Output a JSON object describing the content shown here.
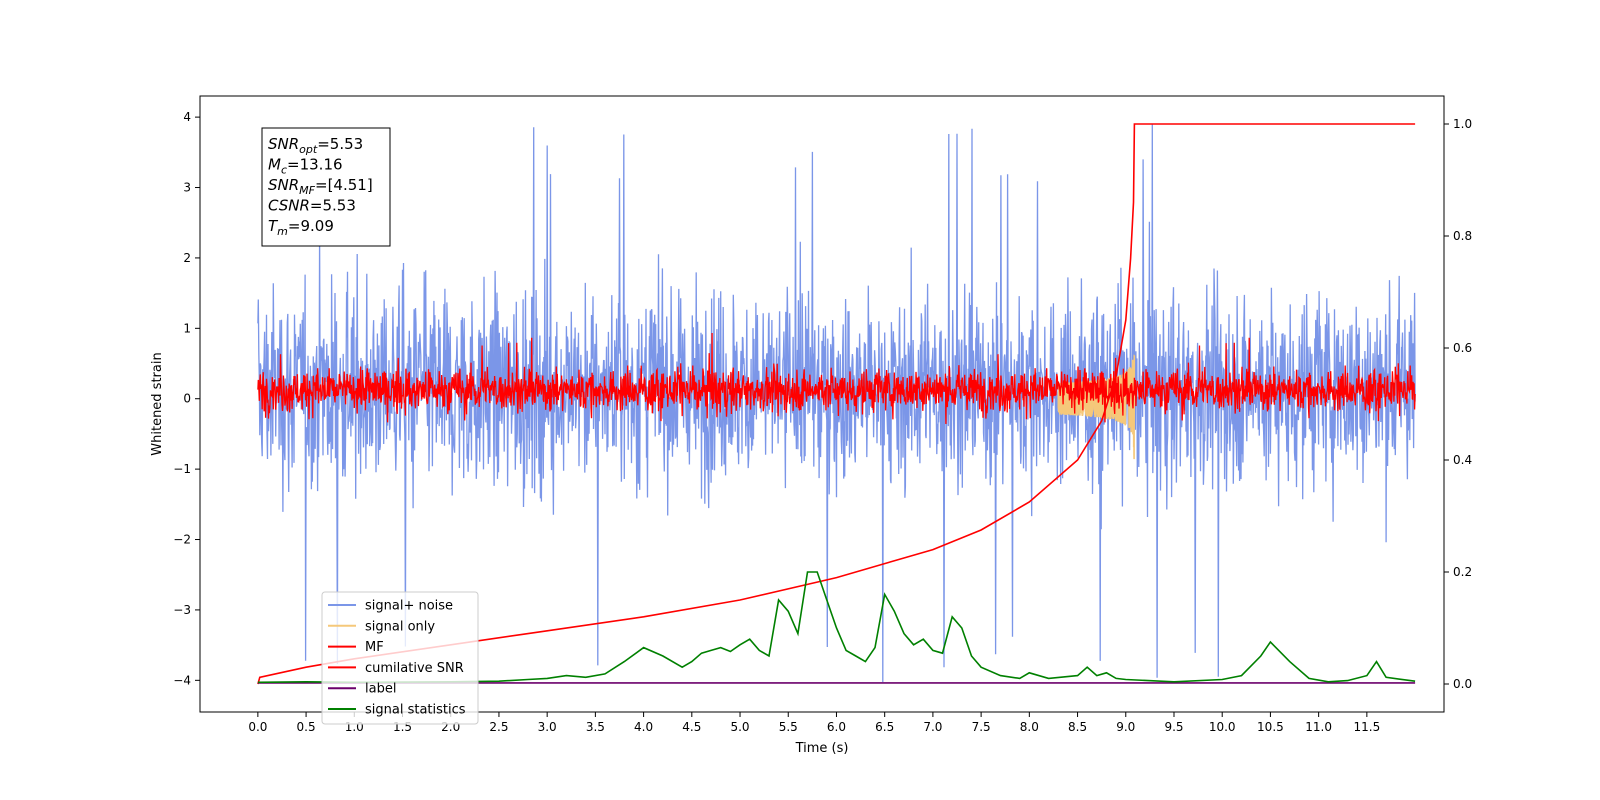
{
  "chart_data": {
    "type": "line",
    "xlabel": "Time (s)",
    "ylabel": "Whitened strain",
    "xlim": [
      -0.6,
      12.3
    ],
    "ylim": [
      -4.45,
      4.3
    ],
    "y2lim": [
      -0.05,
      1.05
    ],
    "x_ticks": [
      0.0,
      0.5,
      1.0,
      1.5,
      2.0,
      2.5,
      3.0,
      3.5,
      4.0,
      4.5,
      5.0,
      5.5,
      6.0,
      6.5,
      7.0,
      7.5,
      8.0,
      8.5,
      9.0,
      9.5,
      10.0,
      10.5,
      11.0,
      11.5
    ],
    "x_tick_labels": [
      "0.0",
      "0.5",
      "1.0",
      "1.5",
      "2.0",
      "2.5",
      "3.0",
      "3.5",
      "4.0",
      "4.5",
      "5.0",
      "5.5",
      "6.0",
      "6.5",
      "7.0",
      "7.5",
      "8.0",
      "8.5",
      "9.0",
      "9.5",
      "10.0",
      "10.5",
      "11.0",
      "11.5"
    ],
    "y_ticks": [
      -4,
      -3,
      -2,
      -1,
      0,
      1,
      2,
      3,
      4
    ],
    "y_tick_labels": [
      "−4",
      "−3",
      "−2",
      "−1",
      "0",
      "1",
      "2",
      "3",
      "4"
    ],
    "y2_ticks": [
      0.0,
      0.2,
      0.4,
      0.6,
      0.8,
      1.0
    ],
    "y2_tick_labels": [
      "0.0",
      "0.2",
      "0.4",
      "0.6",
      "0.8",
      "1.0"
    ],
    "legend_position": "lower-left",
    "annotation_lines": [
      {
        "sym": "SNR",
        "sub": "opt",
        "value": "=5.53"
      },
      {
        "sym": "M",
        "sub": "c",
        "value": "=13.16"
      },
      {
        "sym": "SNR",
        "sub": "MF",
        "value": "=[4.51]"
      },
      {
        "sym": "CSNR",
        "sub": "",
        "value": "=5.53"
      },
      {
        "sym": "T",
        "sub": "m",
        "value": "=9.09"
      }
    ],
    "series": [
      {
        "name": "signal+ noise",
        "color": "#7b96e8",
        "axis": "left",
        "kind": "noise",
        "x_range": [
          0.0,
          12.0
        ],
        "envelope_typical": [
          -2.0,
          2.3
        ],
        "extremes": [
          -4.1,
          3.93
        ]
      },
      {
        "name": "signal only",
        "color": "#f5c87a",
        "axis": "left",
        "kind": "chirp",
        "x_range": [
          8.3,
          9.09
        ],
        "peak": 1.0
      },
      {
        "name": "MF",
        "color": "#ff0000",
        "axis": "left",
        "kind": "noise",
        "x_range": [
          0.0,
          12.0
        ],
        "envelope_typical": [
          -0.35,
          0.6
        ],
        "extremes": [
          -0.4,
          0.96
        ]
      },
      {
        "name": "cumilative SNR",
        "color": "#ff0000",
        "axis": "right",
        "points": [
          [
            0.0,
            0.0
          ],
          [
            0.02,
            0.012
          ],
          [
            0.5,
            0.03
          ],
          [
            1.0,
            0.045
          ],
          [
            2.0,
            0.07
          ],
          [
            3.0,
            0.095
          ],
          [
            4.0,
            0.12
          ],
          [
            5.0,
            0.15
          ],
          [
            6.0,
            0.19
          ],
          [
            7.0,
            0.24
          ],
          [
            7.5,
            0.275
          ],
          [
            8.0,
            0.325
          ],
          [
            8.5,
            0.4
          ],
          [
            8.75,
            0.47
          ],
          [
            8.9,
            0.55
          ],
          [
            9.0,
            0.65
          ],
          [
            9.05,
            0.76
          ],
          [
            9.08,
            0.86
          ],
          [
            9.09,
            1.0
          ],
          [
            12.0,
            1.0
          ]
        ]
      },
      {
        "name": "label",
        "color": "#6b006b",
        "axis": "right",
        "points": [
          [
            0.0,
            0.002
          ],
          [
            12.0,
            0.002
          ]
        ]
      },
      {
        "name": "signal statistics",
        "color": "#008000",
        "axis": "right",
        "points": [
          [
            0.0,
            0.003
          ],
          [
            0.5,
            0.004
          ],
          [
            1.0,
            0.003
          ],
          [
            2.0,
            0.004
          ],
          [
            2.5,
            0.005
          ],
          [
            2.8,
            0.008
          ],
          [
            3.0,
            0.01
          ],
          [
            3.2,
            0.015
          ],
          [
            3.4,
            0.012
          ],
          [
            3.6,
            0.018
          ],
          [
            3.8,
            0.04
          ],
          [
            4.0,
            0.065
          ],
          [
            4.2,
            0.05
          ],
          [
            4.4,
            0.03
          ],
          [
            4.5,
            0.04
          ],
          [
            4.6,
            0.055
          ],
          [
            4.7,
            0.06
          ],
          [
            4.8,
            0.065
          ],
          [
            4.9,
            0.058
          ],
          [
            5.0,
            0.07
          ],
          [
            5.1,
            0.08
          ],
          [
            5.2,
            0.06
          ],
          [
            5.3,
            0.05
          ],
          [
            5.4,
            0.15
          ],
          [
            5.5,
            0.13
          ],
          [
            5.6,
            0.09
          ],
          [
            5.7,
            0.2
          ],
          [
            5.8,
            0.2
          ],
          [
            5.9,
            0.15
          ],
          [
            6.0,
            0.1
          ],
          [
            6.1,
            0.06
          ],
          [
            6.2,
            0.05
          ],
          [
            6.3,
            0.04
          ],
          [
            6.4,
            0.065
          ],
          [
            6.5,
            0.16
          ],
          [
            6.6,
            0.13
          ],
          [
            6.7,
            0.09
          ],
          [
            6.8,
            0.07
          ],
          [
            6.9,
            0.08
          ],
          [
            7.0,
            0.06
          ],
          [
            7.1,
            0.055
          ],
          [
            7.2,
            0.12
          ],
          [
            7.3,
            0.1
          ],
          [
            7.4,
            0.05
          ],
          [
            7.5,
            0.03
          ],
          [
            7.7,
            0.015
          ],
          [
            7.9,
            0.01
          ],
          [
            8.0,
            0.02
          ],
          [
            8.2,
            0.01
          ],
          [
            8.5,
            0.015
          ],
          [
            8.6,
            0.03
          ],
          [
            8.7,
            0.015
          ],
          [
            8.8,
            0.02
          ],
          [
            8.9,
            0.01
          ],
          [
            9.0,
            0.008
          ],
          [
            9.5,
            0.004
          ],
          [
            10.0,
            0.008
          ],
          [
            10.2,
            0.015
          ],
          [
            10.4,
            0.05
          ],
          [
            10.5,
            0.075
          ],
          [
            10.7,
            0.04
          ],
          [
            10.9,
            0.01
          ],
          [
            11.1,
            0.004
          ],
          [
            11.3,
            0.006
          ],
          [
            11.5,
            0.015
          ],
          [
            11.6,
            0.04
          ],
          [
            11.7,
            0.012
          ],
          [
            12.0,
            0.005
          ]
        ]
      }
    ]
  }
}
